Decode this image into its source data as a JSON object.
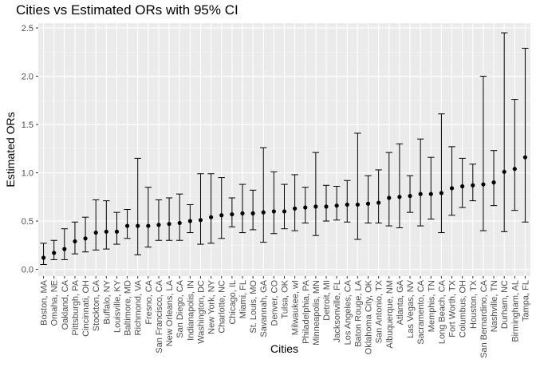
{
  "chart_data": {
    "type": "scatter",
    "title": "Cities vs Estimated ORs with 95% CI",
    "xlabel": "Cities",
    "ylabel": "Estimated ORs",
    "ylim": [
      -0.07,
      2.55
    ],
    "y_ticks": [
      "0.0",
      "0.5",
      "1.0",
      "1.5",
      "2.0",
      "2.5"
    ],
    "grid": true,
    "legend": "none",
    "colors": {
      "panel": "#ebebeb",
      "grid_major": "#ffffff",
      "point": "#000000",
      "errorbar": "#000000"
    },
    "categories": [
      "Boston, MA",
      "Omaha, NE",
      "Oakland, CA",
      "Pittsburgh, PA",
      "Cincinnati, OH",
      "Stockton, CA",
      "Buffalo, NY",
      "Louisville, KY",
      "Baltimore, MD",
      "Richmond, VA",
      "Fresno, CA",
      "San Francisco, CA",
      "New Orleans, LA",
      "San Diego, CA",
      "Indianapolis, IN",
      "Washington, DC",
      "New York, NY",
      "Charlotte, NC",
      "Chicago, IL",
      "Miami, FL",
      "St. Louis, MO",
      "Savannah, GA",
      "Denver, CO",
      "Tulsa, OK",
      "Milwaukee, wI",
      "Philadelphia, PA",
      "Minneapolis, MN",
      "Detroit, MI",
      "Jacksonville, FL",
      "Los Angeles, CA",
      "Baton Rouge, LA",
      "Oklahoma City, OK",
      "San Antonio, TX",
      "Albuquerque, NM",
      "Atlanta, GA",
      "Las Vegas, NV",
      "Sacramento, CA",
      "Memphis, TN",
      "Long Beach, CA",
      "Fort Worth, TX",
      "Columbus, OH",
      "Houston, TX",
      "San Bernardino, CA",
      "Nashville, TN",
      "Durham, NC",
      "Birmingham, AL",
      "Tampa, FL"
    ],
    "estimate": [
      0.12,
      0.17,
      0.21,
      0.29,
      0.32,
      0.38,
      0.39,
      0.39,
      0.45,
      0.45,
      0.45,
      0.46,
      0.47,
      0.48,
      0.5,
      0.51,
      0.54,
      0.56,
      0.57,
      0.58,
      0.58,
      0.59,
      0.6,
      0.6,
      0.63,
      0.64,
      0.65,
      0.65,
      0.66,
      0.67,
      0.67,
      0.68,
      0.69,
      0.74,
      0.75,
      0.76,
      0.78,
      0.78,
      0.79,
      0.84,
      0.86,
      0.87,
      0.88,
      0.9,
      1.01,
      1.04,
      1.16
    ],
    "ci_low": [
      0.05,
      0.1,
      0.1,
      0.16,
      0.18,
      0.2,
      0.21,
      0.26,
      0.32,
      0.15,
      0.23,
      0.3,
      0.3,
      0.3,
      0.38,
      0.26,
      0.27,
      0.32,
      0.44,
      0.38,
      0.41,
      0.28,
      0.37,
      0.42,
      0.4,
      0.48,
      0.35,
      0.5,
      0.51,
      0.49,
      0.31,
      0.48,
      0.48,
      0.45,
      0.43,
      0.59,
      0.45,
      0.52,
      0.38,
      0.56,
      0.64,
      0.71,
      0.4,
      0.66,
      0.39,
      0.61,
      0.49
    ],
    "ci_high": [
      0.27,
      0.3,
      0.42,
      0.49,
      0.54,
      0.72,
      0.71,
      0.59,
      0.62,
      1.15,
      0.85,
      0.72,
      0.74,
      0.78,
      0.67,
      0.99,
      0.99,
      0.95,
      0.74,
      0.88,
      0.82,
      1.26,
      1.01,
      0.88,
      0.98,
      0.85,
      1.21,
      0.87,
      0.86,
      0.92,
      1.41,
      0.97,
      1.03,
      1.21,
      1.3,
      0.97,
      1.35,
      1.16,
      1.61,
      1.27,
      1.15,
      1.09,
      2.0,
      1.23,
      2.45,
      1.76,
      2.29
    ]
  }
}
